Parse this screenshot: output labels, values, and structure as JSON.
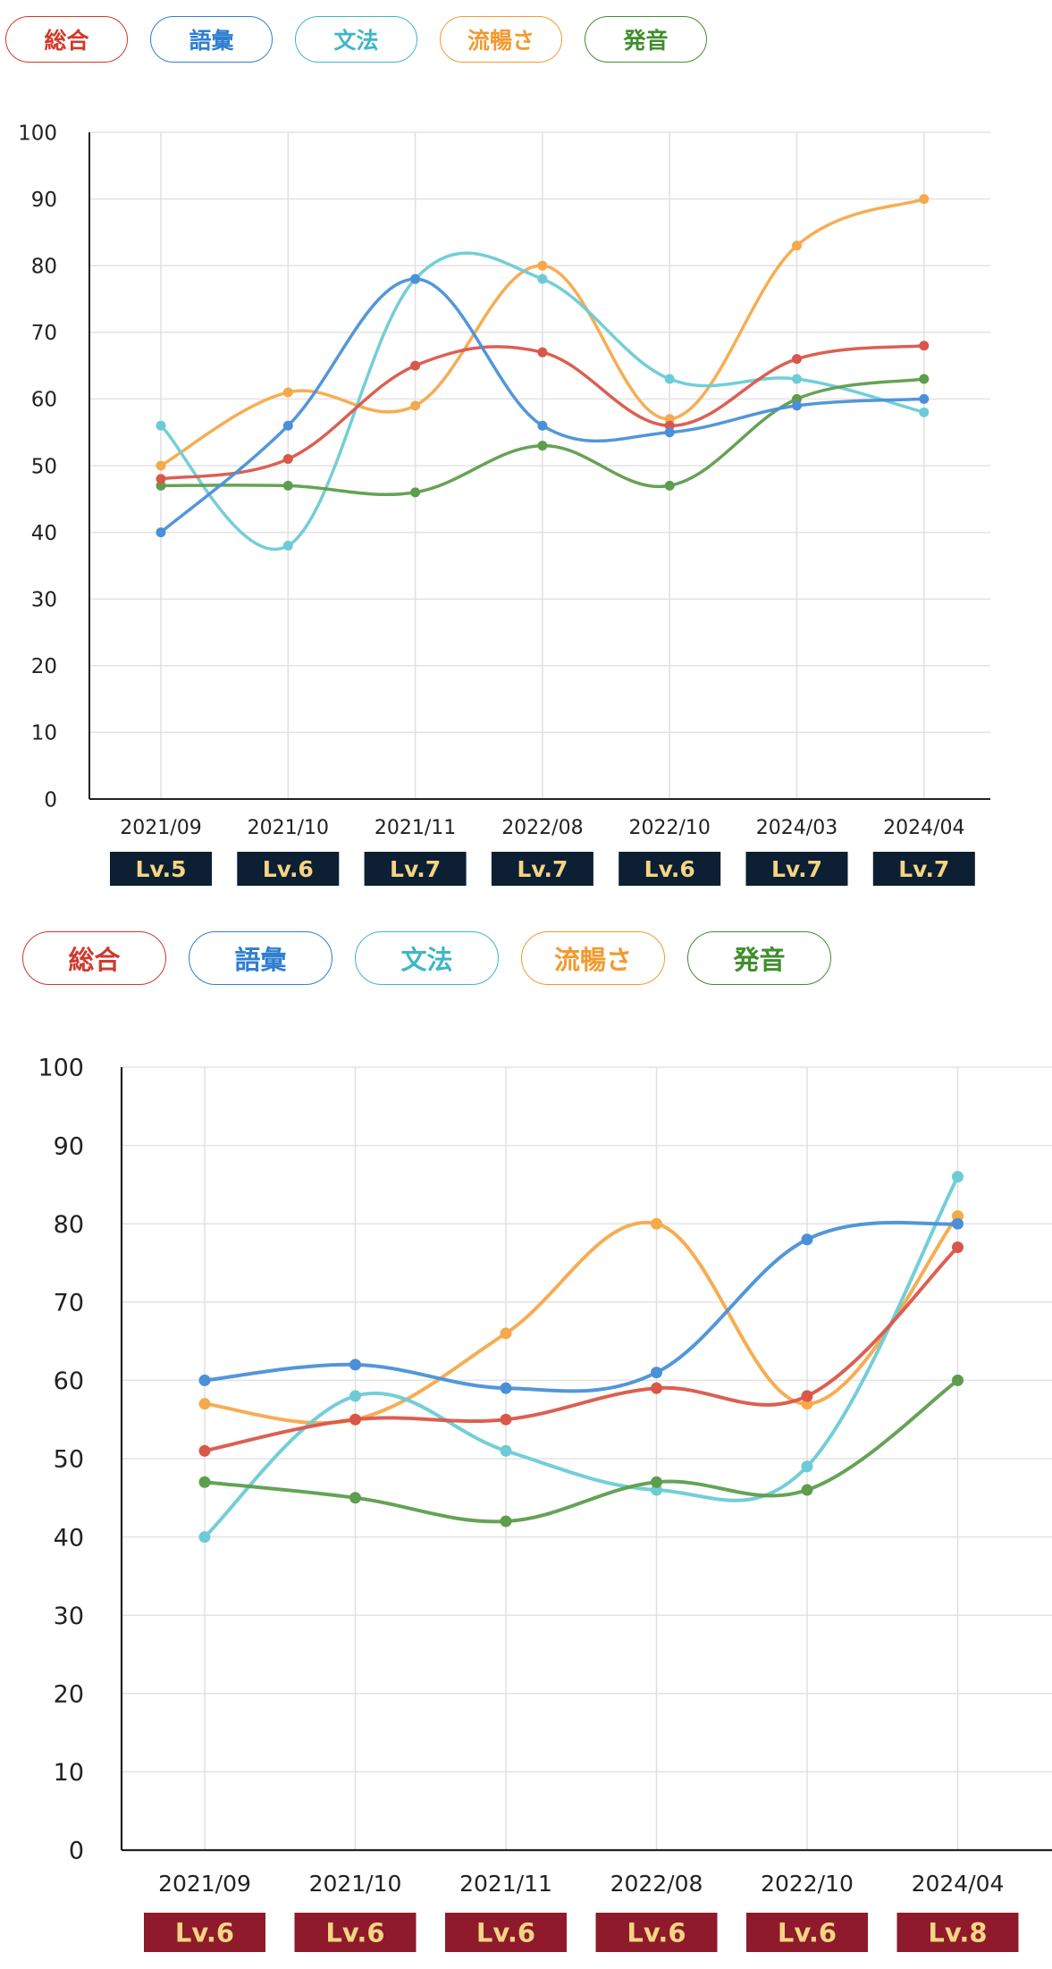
{
  "charts": [
    {
      "legend": [
        {
          "label": "総合",
          "color": "#cf3a2c"
        },
        {
          "label": "語彙",
          "color": "#2f7fd0"
        },
        {
          "label": "文法",
          "color": "#3fb6c8"
        },
        {
          "label": "流暢さ",
          "color": "#f29a2e"
        },
        {
          "label": "発音",
          "color": "#3f8f2c"
        }
      ],
      "level_color": "#0c1f33",
      "levels": [
        "Lv.5",
        "Lv.6",
        "Lv.7",
        "Lv.7",
        "Lv.6",
        "Lv.7",
        "Lv.7"
      ],
      "chart_data": {
        "type": "line",
        "categories": [
          "2021/09",
          "2021/10",
          "2021/11",
          "2022/08",
          "2022/10",
          "2024/03",
          "2024/04"
        ],
        "ylim": [
          0,
          100
        ],
        "yticks": [
          0,
          10,
          20,
          30,
          40,
          50,
          60,
          70,
          80,
          90,
          100
        ],
        "grid": true,
        "series": [
          {
            "name": "流暢さ",
            "color": "#f5a94a",
            "values": [
              50,
              61,
              59,
              80,
              57,
              83,
              90
            ]
          },
          {
            "name": "文法",
            "color": "#6ccbd6",
            "values": [
              56,
              38,
              78,
              78,
              63,
              63,
              58
            ]
          },
          {
            "name": "発音",
            "color": "#5d9e4c",
            "values": [
              47,
              47,
              46,
              53,
              47,
              60,
              63
            ]
          },
          {
            "name": "総合",
            "color": "#d9574a",
            "values": [
              48,
              51,
              65,
              67,
              56,
              66,
              68
            ]
          },
          {
            "name": "語彙",
            "color": "#4a90d9",
            "values": [
              40,
              56,
              78,
              56,
              55,
              59,
              60
            ]
          }
        ]
      }
    },
    {
      "legend": [
        {
          "label": "総合",
          "color": "#cf3a2c"
        },
        {
          "label": "語彙",
          "color": "#2f7fd0"
        },
        {
          "label": "文法",
          "color": "#3fb6c8"
        },
        {
          "label": "流暢さ",
          "color": "#f29a2e"
        },
        {
          "label": "発音",
          "color": "#3f8f2c"
        }
      ],
      "level_color": "#8e1a2b",
      "levels": [
        "Lv.6",
        "Lv.6",
        "Lv.6",
        "Lv.6",
        "Lv.6",
        "Lv.8"
      ],
      "chart_data": {
        "type": "line",
        "categories": [
          "2021/09",
          "2021/10",
          "2021/11",
          "2022/08",
          "2022/10",
          "2024/04"
        ],
        "ylim": [
          0,
          100
        ],
        "yticks": [
          0,
          10,
          20,
          30,
          40,
          50,
          60,
          70,
          80,
          90,
          100
        ],
        "grid": true,
        "series": [
          {
            "name": "流暢さ",
            "color": "#f5a94a",
            "values": [
              57,
              55,
              66,
              80,
              57,
              81
            ]
          },
          {
            "name": "文法",
            "color": "#6ccbd6",
            "values": [
              40,
              58,
              51,
              46,
              49,
              86
            ]
          },
          {
            "name": "発音",
            "color": "#5d9e4c",
            "values": [
              47,
              45,
              42,
              47,
              46,
              60
            ]
          },
          {
            "name": "総合",
            "color": "#d9574a",
            "values": [
              51,
              55,
              55,
              59,
              58,
              77
            ]
          },
          {
            "name": "語彙",
            "color": "#4a90d9",
            "values": [
              60,
              62,
              59,
              61,
              78,
              80
            ]
          }
        ]
      }
    }
  ]
}
